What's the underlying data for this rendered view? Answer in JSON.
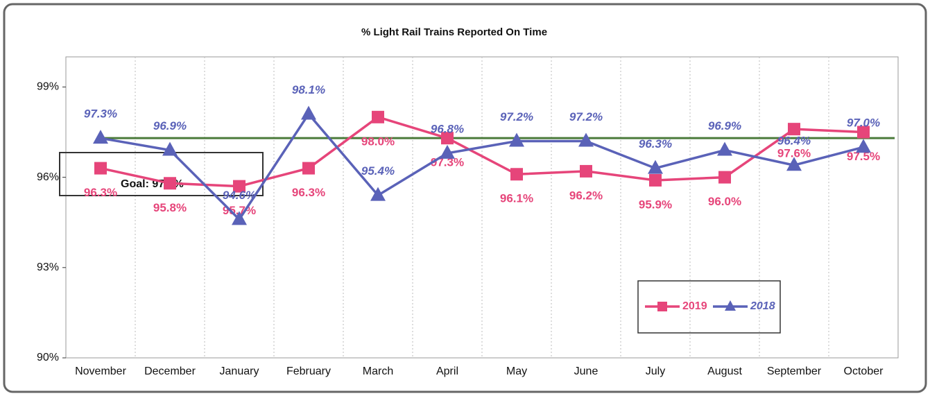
{
  "chart_data": {
    "type": "line",
    "title": "% Light Rail Trains Reported On Time",
    "categories": [
      "November",
      "December",
      "January",
      "February",
      "March",
      "April",
      "May",
      "June",
      "July",
      "August",
      "September",
      "October"
    ],
    "series": [
      {
        "name": "2019",
        "color": "#e6457a",
        "marker": "square",
        "values": [
          96.3,
          95.8,
          95.7,
          96.3,
          98.0,
          97.3,
          96.1,
          96.2,
          95.9,
          96.0,
          97.6,
          97.5
        ],
        "value_labels": [
          "96.3%",
          "95.8%",
          "95.7%",
          "96.3%",
          "98.0%",
          "97.3%",
          "96.1%",
          "96.2%",
          "95.9%",
          "96.0%",
          "97.6%",
          "97.5%"
        ]
      },
      {
        "name": "2018",
        "color": "#5a62b8",
        "marker": "triangle",
        "values": [
          97.3,
          96.9,
          94.6,
          98.1,
          95.4,
          96.8,
          97.2,
          97.2,
          96.3,
          96.9,
          96.4,
          97.0
        ],
        "value_labels": [
          "97.3%",
          "96.9%",
          "94.6%",
          "98.1%",
          "95.4%",
          "96.8%",
          "97.2%",
          "97.2%",
          "96.3%",
          "96.9%",
          "96.4%",
          "97.0%"
        ]
      }
    ],
    "goal": {
      "label": "Goal: 97.3%",
      "value": 97.3,
      "color": "#4a7a3a"
    },
    "ylim": [
      90,
      100
    ],
    "yticks": [
      {
        "value": 90,
        "label": "90%"
      },
      {
        "value": 93,
        "label": "93%"
      },
      {
        "value": 96,
        "label": "96%"
      },
      {
        "value": 99,
        "label": "99%"
      }
    ],
    "legend": "bottom-right"
  }
}
